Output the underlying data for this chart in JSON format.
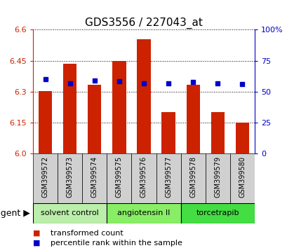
{
  "title": "GDS3556 / 227043_at",
  "samples": [
    "GSM399572",
    "GSM399573",
    "GSM399574",
    "GSM399575",
    "GSM399576",
    "GSM399577",
    "GSM399578",
    "GSM399579",
    "GSM399580"
  ],
  "bar_values": [
    6.305,
    6.435,
    6.335,
    6.45,
    6.555,
    6.2,
    6.335,
    6.2,
    6.15
  ],
  "percentile_values": [
    6.362,
    6.34,
    6.355,
    6.35,
    6.34,
    6.34,
    6.348,
    6.34,
    6.338
  ],
  "ymin": 6.0,
  "ymax": 6.6,
  "yticks": [
    6.0,
    6.15,
    6.3,
    6.45,
    6.6
  ],
  "right_yticks": [
    0,
    25,
    50,
    75,
    100
  ],
  "bar_color": "#cc2200",
  "dot_color": "#0000cc",
  "bar_width": 0.55,
  "dot_size": 5,
  "groups": [
    {
      "label": "solvent control",
      "start": 0,
      "end": 3,
      "color": "#bbeeaa"
    },
    {
      "label": "angiotensin II",
      "start": 3,
      "end": 6,
      "color": "#88ee66"
    },
    {
      "label": "torcetrapib",
      "start": 6,
      "end": 9,
      "color": "#44dd44"
    }
  ],
  "group_row_color": "#cccccc",
  "agent_label": "agent",
  "legend_items": [
    {
      "label": "transformed count",
      "color": "#cc2200"
    },
    {
      "label": "percentile rank within the sample",
      "color": "#0000cc"
    }
  ],
  "title_fontsize": 11,
  "tick_fontsize": 8,
  "sample_fontsize": 7,
  "group_fontsize": 8,
  "legend_fontsize": 8
}
